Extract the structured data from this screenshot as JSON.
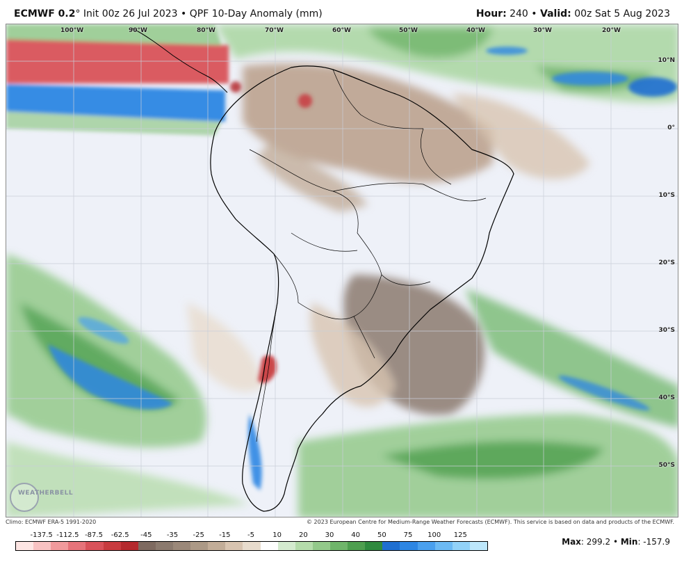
{
  "header": {
    "model": "ECMWF 0.2",
    "degree": "°",
    "rest": " Init 00z 26 Jul 2023 • QPF 10-Day Anomaly (mm)",
    "hour_label": "Hour:",
    "hour_value": " 240 • ",
    "valid_label": "Valid:",
    "valid_value": " 00z Sat 5 Aug 2023"
  },
  "map": {
    "longitude_labels": [
      "100°W",
      "90°W",
      "80°W",
      "70°W",
      "60°W",
      "50°W",
      "40°W",
      "30°W",
      "20°W"
    ],
    "latitude_labels": [
      "10°N",
      "0°",
      "10°S",
      "20°S",
      "30°S",
      "40°S",
      "50°S"
    ]
  },
  "footer": {
    "climo": "Climo: ECMWF ERA-5 1991-2020",
    "copyright": "© 2023 European Centre for Medium-Range Weather Forecasts (ECMWF). This service is based on data and products of the ECMWF.",
    "max_label": "Max",
    "max_value": ": 299.2 • ",
    "min_label": "Min",
    "min_value": ": -157.9",
    "logo_text": "WEATHERBELL"
  },
  "colorbar": {
    "ticks": [
      "-137.5",
      "-112.5",
      "-87.5",
      "-62.5",
      "-45",
      "-35",
      "-25",
      "-15",
      "-5",
      "10",
      "20",
      "30",
      "40",
      "50",
      "75",
      "100",
      "125"
    ],
    "colors": [
      "#fde5e3",
      "#f8c2c2",
      "#f19a9c",
      "#e6737a",
      "#d9525a",
      "#c83b3f",
      "#b52a2e",
      "#7e6a60",
      "#8b7a6e",
      "#9b8879",
      "#ac9986",
      "#c2ad98",
      "#d8c4b0",
      "#e8dccd",
      "#ffffff",
      "#d4ebcf",
      "#b5dcab",
      "#93c98a",
      "#6fb56a",
      "#4e9f4f",
      "#2f8a3e",
      "#1f6fd1",
      "#2d86e3",
      "#4aa0ee",
      "#6cbaf4",
      "#92d2f8",
      "#bde7fb"
    ]
  }
}
